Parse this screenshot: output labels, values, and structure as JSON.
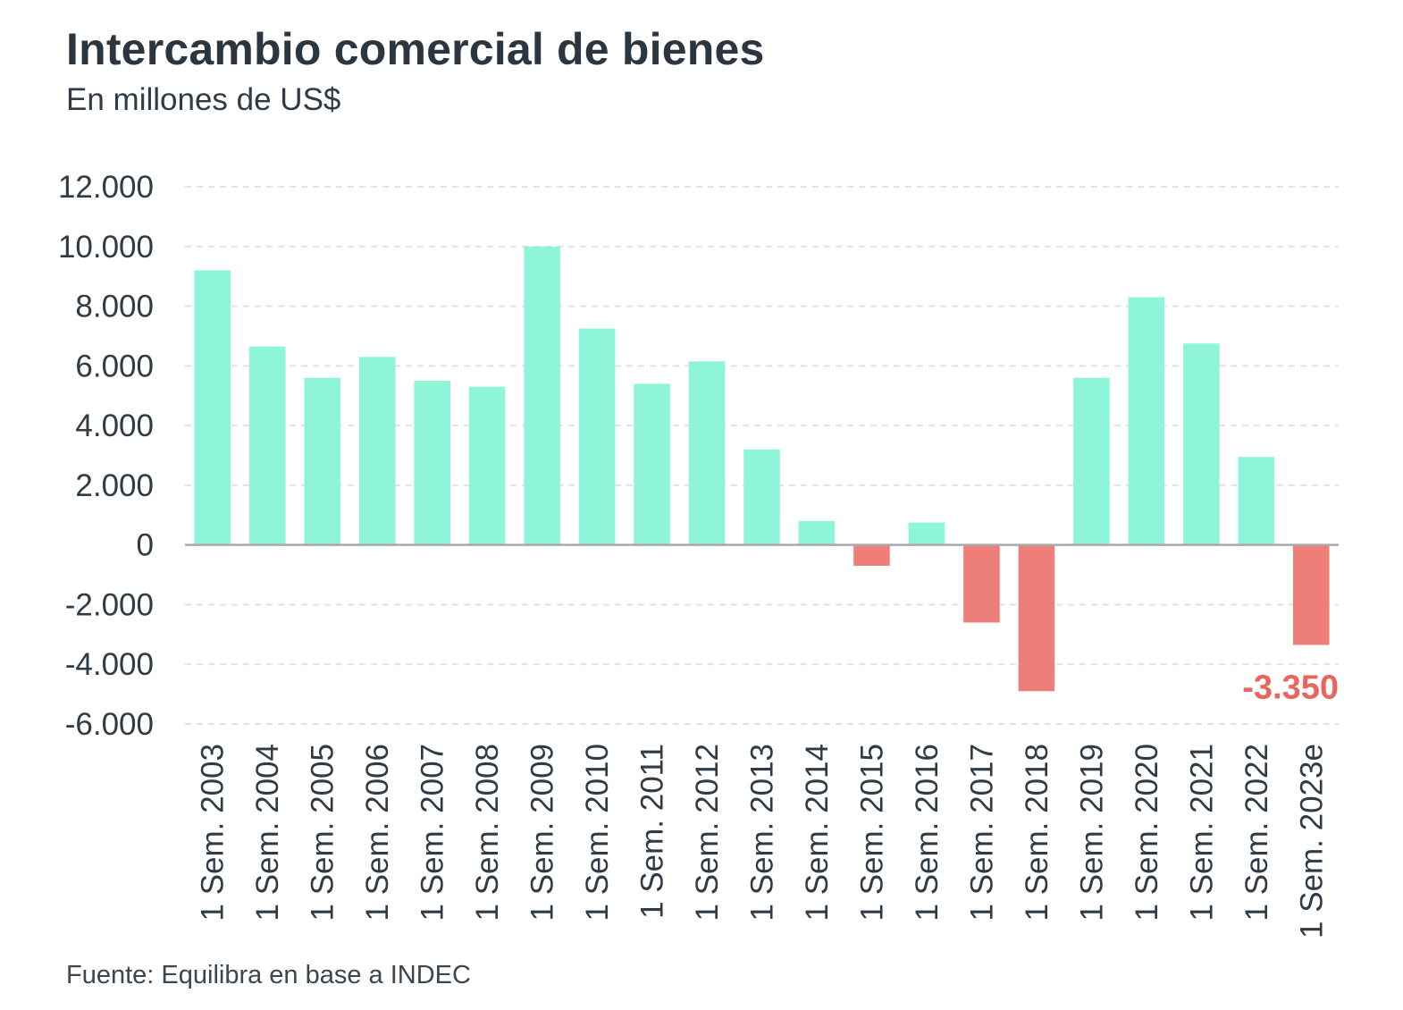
{
  "header": {
    "title": "Intercambio comercial de bienes",
    "subtitle": "En millones de US$"
  },
  "footer": {
    "source": "Fuente: Equilibra en base a INDEC"
  },
  "colors": {
    "positive": "#8ff5d8",
    "negative": "#ee7f78",
    "highlight_label": "#e8665e",
    "grid": "#e3e3e3",
    "axis": "#a9a9a9",
    "text": "#2f3b45"
  },
  "chart_data": {
    "type": "bar",
    "title": "Intercambio comercial de bienes",
    "subtitle": "En millones de US$",
    "xlabel": "",
    "ylabel": "",
    "ylim": [
      -6000,
      12000
    ],
    "yticks": [
      12000,
      10000,
      8000,
      6000,
      4000,
      2000,
      0,
      -2000,
      -4000,
      -6000
    ],
    "ytick_labels": [
      "12.000",
      "10.000",
      "8.000",
      "6.000",
      "4.000",
      "2.000",
      "0",
      "-2.000",
      "-4.000",
      "-6.000"
    ],
    "grid": true,
    "categories": [
      "1 Sem. 2003",
      "1 Sem. 2004",
      "1 Sem. 2005",
      "1 Sem. 2006",
      "1 Sem. 2007",
      "1 Sem. 2008",
      "1 Sem. 2009",
      "1 Sem. 2010",
      "1 Sem. 2011",
      "1 Sem. 2012",
      "1 Sem. 2013",
      "1 Sem. 2014",
      "1 Sem. 2015",
      "1 Sem. 2016",
      "1 Sem. 2017",
      "1 Sem. 2018",
      "1 Sem. 2019",
      "1 Sem. 2020",
      "1 Sem. 2021",
      "1 Sem. 2022",
      "1 Sem. 2023e"
    ],
    "values": [
      9200,
      6650,
      5600,
      6300,
      5500,
      5300,
      10000,
      7250,
      5400,
      6150,
      3200,
      800,
      -700,
      750,
      -2600,
      -4900,
      5600,
      8300,
      6750,
      2950,
      -3350
    ],
    "annotations": [
      {
        "category": "1 Sem. 2023e",
        "label": "-3.350"
      }
    ]
  }
}
